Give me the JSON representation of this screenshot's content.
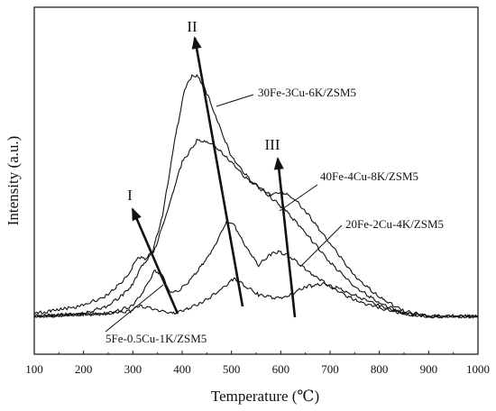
{
  "chart_data": {
    "type": "line",
    "xlabel": "Temperature (℃)",
    "ylabel": "Intensity (a.u.)",
    "xlim": [
      100,
      1000
    ],
    "x_ticks": [
      "100",
      "200",
      "300",
      "400",
      "500",
      "600",
      "700",
      "800",
      "900",
      "1000"
    ],
    "grid": false,
    "line_color": "#111111",
    "series": [
      {
        "name": "30Fe-3Cu-6K/ZSM5",
        "points": [
          [
            100,
            0.02
          ],
          [
            200,
            0.05
          ],
          [
            250,
            0.09
          ],
          [
            290,
            0.16
          ],
          [
            310,
            0.23
          ],
          [
            325,
            0.22
          ],
          [
            340,
            0.25
          ],
          [
            360,
            0.38
          ],
          [
            385,
            0.66
          ],
          [
            405,
            0.85
          ],
          [
            420,
            0.9
          ],
          [
            430,
            0.9
          ],
          [
            445,
            0.86
          ],
          [
            470,
            0.74
          ],
          [
            500,
            0.6
          ],
          [
            540,
            0.51
          ],
          [
            580,
            0.45
          ],
          [
            610,
            0.4
          ],
          [
            650,
            0.32
          ],
          [
            700,
            0.21
          ],
          [
            750,
            0.12
          ],
          [
            800,
            0.06
          ],
          [
            850,
            0.02
          ],
          [
            900,
            0.01
          ],
          [
            1000,
            0.01
          ]
        ]
      },
      {
        "name": "40Fe-4Cu-8K/ZSM5",
        "points": [
          [
            100,
            0.01
          ],
          [
            200,
            0.02
          ],
          [
            250,
            0.05
          ],
          [
            280,
            0.09
          ],
          [
            300,
            0.13
          ],
          [
            318,
            0.2
          ],
          [
            330,
            0.22
          ],
          [
            345,
            0.26
          ],
          [
            370,
            0.4
          ],
          [
            400,
            0.58
          ],
          [
            430,
            0.66
          ],
          [
            460,
            0.65
          ],
          [
            490,
            0.6
          ],
          [
            530,
            0.52
          ],
          [
            580,
            0.46
          ],
          [
            600,
            0.47
          ],
          [
            625,
            0.45
          ],
          [
            650,
            0.4
          ],
          [
            700,
            0.28
          ],
          [
            750,
            0.16
          ],
          [
            800,
            0.08
          ],
          [
            850,
            0.03
          ],
          [
            900,
            0.01
          ],
          [
            1000,
            0.01
          ]
        ]
      },
      {
        "name": "20Fe-2Cu-4K/ZSM5",
        "points": [
          [
            100,
            0.01
          ],
          [
            250,
            0.02
          ],
          [
            300,
            0.05
          ],
          [
            320,
            0.1
          ],
          [
            345,
            0.18
          ],
          [
            360,
            0.16
          ],
          [
            375,
            0.1
          ],
          [
            390,
            0.1
          ],
          [
            420,
            0.15
          ],
          [
            460,
            0.25
          ],
          [
            490,
            0.36
          ],
          [
            505,
            0.35
          ],
          [
            525,
            0.28
          ],
          [
            555,
            0.2
          ],
          [
            580,
            0.24
          ],
          [
            595,
            0.25
          ],
          [
            620,
            0.23
          ],
          [
            660,
            0.17
          ],
          [
            700,
            0.12
          ],
          [
            750,
            0.07
          ],
          [
            800,
            0.04
          ],
          [
            850,
            0.02
          ],
          [
            900,
            0.01
          ],
          [
            1000,
            0.01
          ]
        ]
      },
      {
        "name": "5Fe-0.5Cu-1K/ZSM5",
        "points": [
          [
            100,
            0.01
          ],
          [
            250,
            0.02
          ],
          [
            295,
            0.03
          ],
          [
            315,
            0.05
          ],
          [
            335,
            0.04
          ],
          [
            360,
            0.03
          ],
          [
            380,
            0.02
          ],
          [
            400,
            0.03
          ],
          [
            440,
            0.06
          ],
          [
            480,
            0.11
          ],
          [
            505,
            0.15
          ],
          [
            530,
            0.12
          ],
          [
            555,
            0.09
          ],
          [
            580,
            0.08
          ],
          [
            610,
            0.08
          ],
          [
            650,
            0.12
          ],
          [
            690,
            0.13
          ],
          [
            720,
            0.11
          ],
          [
            760,
            0.08
          ],
          [
            800,
            0.05
          ],
          [
            850,
            0.02
          ],
          [
            900,
            0.01
          ],
          [
            1000,
            0.01
          ]
        ]
      }
    ],
    "annotations": [
      {
        "text": "I",
        "x": 320,
        "y": 0.5
      },
      {
        "text": "II",
        "x": 435,
        "y": 1.07
      },
      {
        "text": "III",
        "x": 592,
        "y": 0.63
      }
    ],
    "series_labels": [
      {
        "text": "30Fe-3Cu-6K/ZSM5",
        "x": 612,
        "y": 0.87
      },
      {
        "text": "40Fe-4Cu-8K/ZSM5",
        "x": 690,
        "y": 0.55
      },
      {
        "text": "20Fe-2Cu-4K/ZSM5",
        "x": 740,
        "y": 0.36
      },
      {
        "text": "5Fe-0.5Cu-1K/ZSM5",
        "x": 490,
        "y": -0.065
      }
    ]
  }
}
